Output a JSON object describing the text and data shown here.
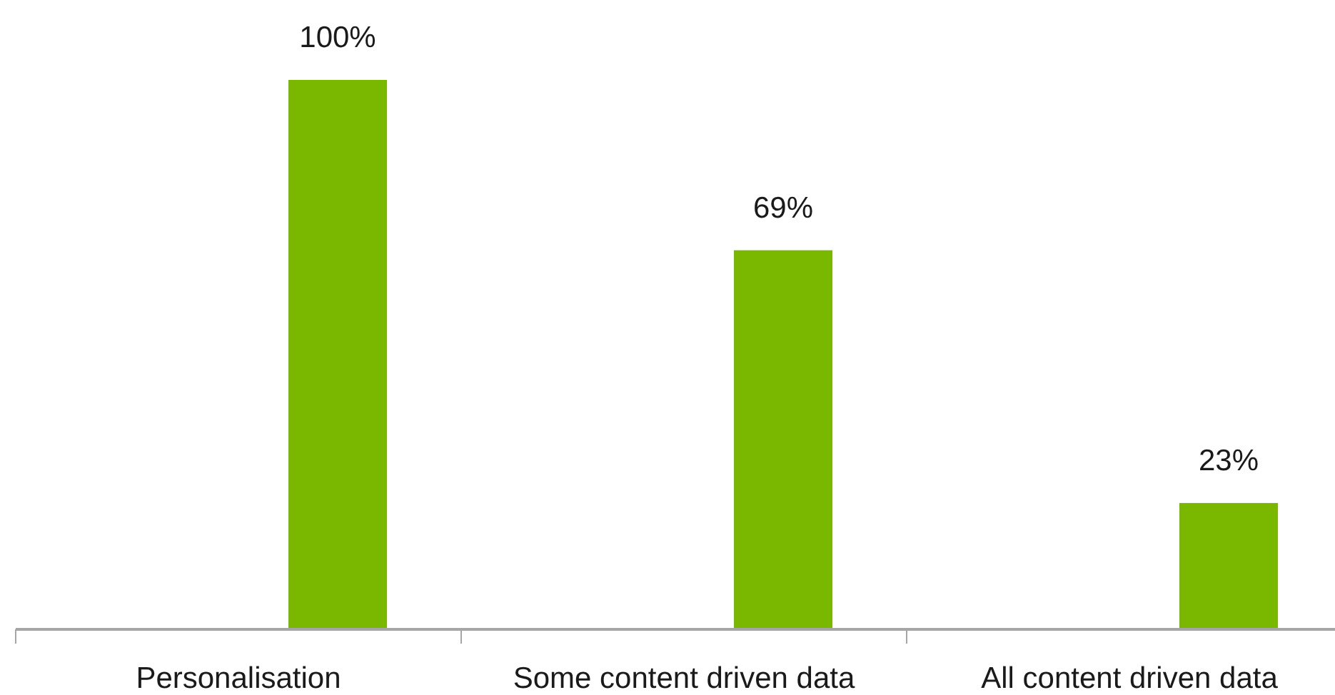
{
  "chart_data": {
    "type": "bar",
    "categories": [
      "Personalisation",
      "Some content driven data",
      "All content driven data"
    ],
    "values": [
      100,
      69,
      23
    ],
    "color": "#7ab800",
    "value_labels": [
      "100%",
      "69%",
      "23%"
    ]
  }
}
